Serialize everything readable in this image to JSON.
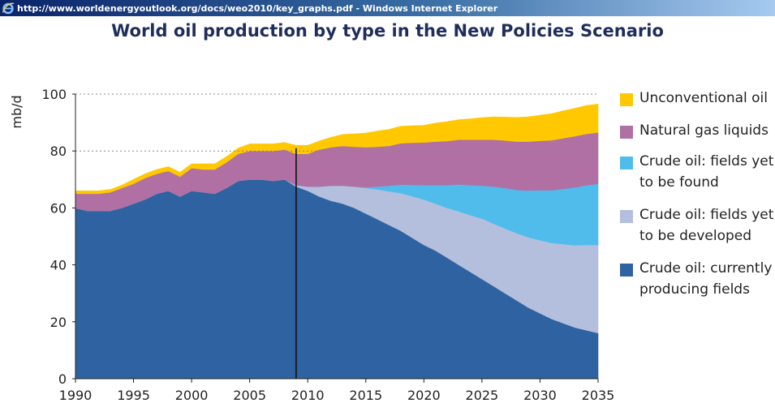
{
  "window": {
    "title": "http://www.worldenergyoutlook.org/docs/weo2010/key_graphs.pdf - Windows Internet Explorer",
    "icon": "internet-explorer-icon"
  },
  "chart_data": {
    "type": "area",
    "title": "World oil production by type in the New Policies Scenario",
    "ylabel": "mb/d",
    "xlabel": "",
    "ylim": [
      0,
      100
    ],
    "xlim": [
      1990,
      2035
    ],
    "yticks": [
      0,
      20,
      40,
      60,
      80,
      100
    ],
    "xticks": [
      1990,
      1995,
      2000,
      2005,
      2010,
      2015,
      2020,
      2025,
      2030,
      2035
    ],
    "grid": "dotted horizontal at 80 and 100",
    "divider_year": 2009,
    "legend_position": "right",
    "x": [
      1990,
      1991,
      1992,
      1993,
      1994,
      1995,
      1996,
      1997,
      1998,
      1999,
      2000,
      2001,
      2002,
      2003,
      2004,
      2005,
      2006,
      2007,
      2008,
      2009,
      2010,
      2011,
      2012,
      2013,
      2014,
      2015,
      2016,
      2017,
      2018,
      2019,
      2020,
      2021,
      2022,
      2023,
      2024,
      2025,
      2026,
      2027,
      2028,
      2029,
      2030,
      2031,
      2032,
      2033,
      2034,
      2035
    ],
    "series": [
      {
        "name": "Crude oil: currently producing fields",
        "color": "#2e62a0",
        "values": [
          60,
          59,
          59,
          59,
          60,
          61.5,
          63,
          65,
          66,
          64,
          66,
          65.5,
          65,
          67,
          69.5,
          70,
          70,
          69.5,
          70,
          67.5,
          66,
          64,
          62.5,
          61.5,
          60,
          58,
          56,
          54,
          52,
          49.5,
          47,
          45,
          42.5,
          40,
          37.5,
          35,
          32.5,
          30,
          27.5,
          25,
          23,
          21,
          19.5,
          18,
          17,
          16
        ]
      },
      {
        "name": "Crude oil: fields yet to be developed",
        "color": "#b3bfdc",
        "values": [
          0,
          0,
          0,
          0,
          0,
          0,
          0,
          0,
          0,
          0,
          0,
          0,
          0,
          0,
          0,
          0,
          0,
          0,
          0,
          0.5,
          1.5,
          3.5,
          5.3,
          6.3,
          7.5,
          9,
          10.5,
          11.8,
          13.2,
          14.6,
          16,
          16.5,
          17.5,
          18.8,
          20,
          21.3,
          22,
          22.8,
          23.6,
          24.7,
          25.7,
          26.7,
          27.8,
          28.9,
          30,
          31
        ]
      },
      {
        "name": "Crude oil: fields yet to be found",
        "color": "#4fbcec",
        "values": [
          0,
          0,
          0,
          0,
          0,
          0,
          0,
          0,
          0,
          0,
          0,
          0,
          0,
          0,
          0,
          0,
          0,
          0,
          0,
          0,
          0,
          0,
          0,
          0,
          0,
          0.3,
          1,
          2,
          3,
          4,
          5,
          6.5,
          8,
          9.5,
          10.5,
          11.5,
          13,
          14.2,
          15.2,
          16.4,
          17.5,
          18.5,
          19.4,
          20.3,
          21,
          21.5
        ]
      },
      {
        "name": "Natural gas liquids",
        "color": "#b070a4",
        "values": [
          5,
          6,
          6,
          6.5,
          7,
          7,
          7.5,
          7,
          7,
          7,
          8,
          8,
          8.5,
          9,
          9.5,
          10,
          10,
          10.5,
          10.5,
          11,
          11.5,
          13,
          13.5,
          14,
          14,
          14,
          14,
          14,
          14.5,
          14.8,
          15,
          15.3,
          15.5,
          15.7,
          16,
          16.2,
          16.5,
          16.7,
          17,
          17.2,
          17.4,
          17.6,
          17.8,
          18,
          18,
          18
        ]
      },
      {
        "name": "Unconventional oil",
        "color": "#ffc800",
        "values": [
          1,
          1,
          1,
          1,
          1,
          1.5,
          1.5,
          1.5,
          1.5,
          1.5,
          1.5,
          2,
          2,
          2,
          2,
          2.5,
          2.5,
          2.5,
          2.5,
          3,
          3,
          3,
          3.5,
          4,
          4.5,
          5,
          5.5,
          5.8,
          6,
          6,
          6,
          6.5,
          6.8,
          7,
          7.3,
          7.7,
          8,
          8.2,
          8.5,
          8.7,
          9,
          9.3,
          9.6,
          9.8,
          10,
          10
        ]
      }
    ]
  }
}
